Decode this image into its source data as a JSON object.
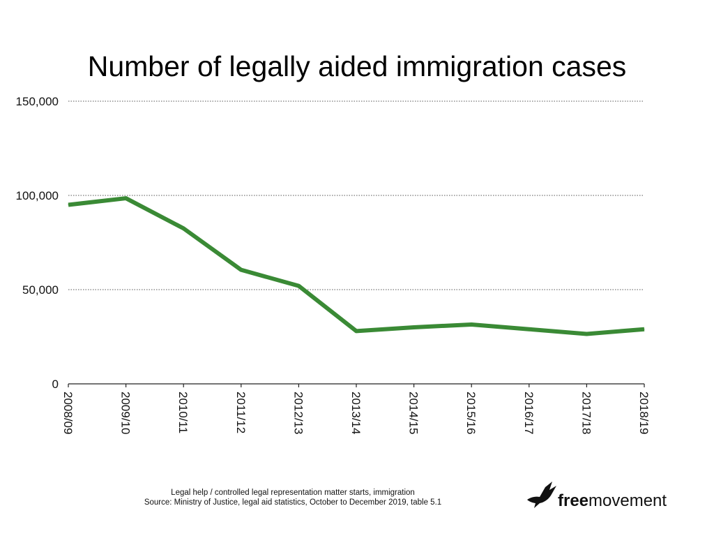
{
  "chart_data": {
    "type": "line",
    "title": "Number of legally aided immigration cases",
    "x": [
      "2008/09",
      "2009/10",
      "2010/11",
      "2011/12",
      "2012/13",
      "2013/14",
      "2014/15",
      "2015/16",
      "2016/17",
      "2017/18",
      "2018/19"
    ],
    "series": [
      {
        "values": [
          95000,
          98500,
          82500,
          60500,
          52000,
          28000,
          30000,
          31500,
          29000,
          26500,
          29000
        ],
        "color": "#3a8a35"
      }
    ],
    "y_ticks": [
      "0",
      "50,000",
      "100,000",
      "150,000"
    ],
    "ylim": [
      0,
      150000
    ],
    "grid": "horizontal dotted"
  },
  "caption": {
    "line1": "Legal help / controlled legal representation matter starts, immigration",
    "line2": "Source: Ministry of Justice, legal aid statistics, October to December 2019, table 5.1"
  },
  "logo": {
    "bold": "free",
    "regular": "movement",
    "icon": "bird-in-flight-icon"
  }
}
